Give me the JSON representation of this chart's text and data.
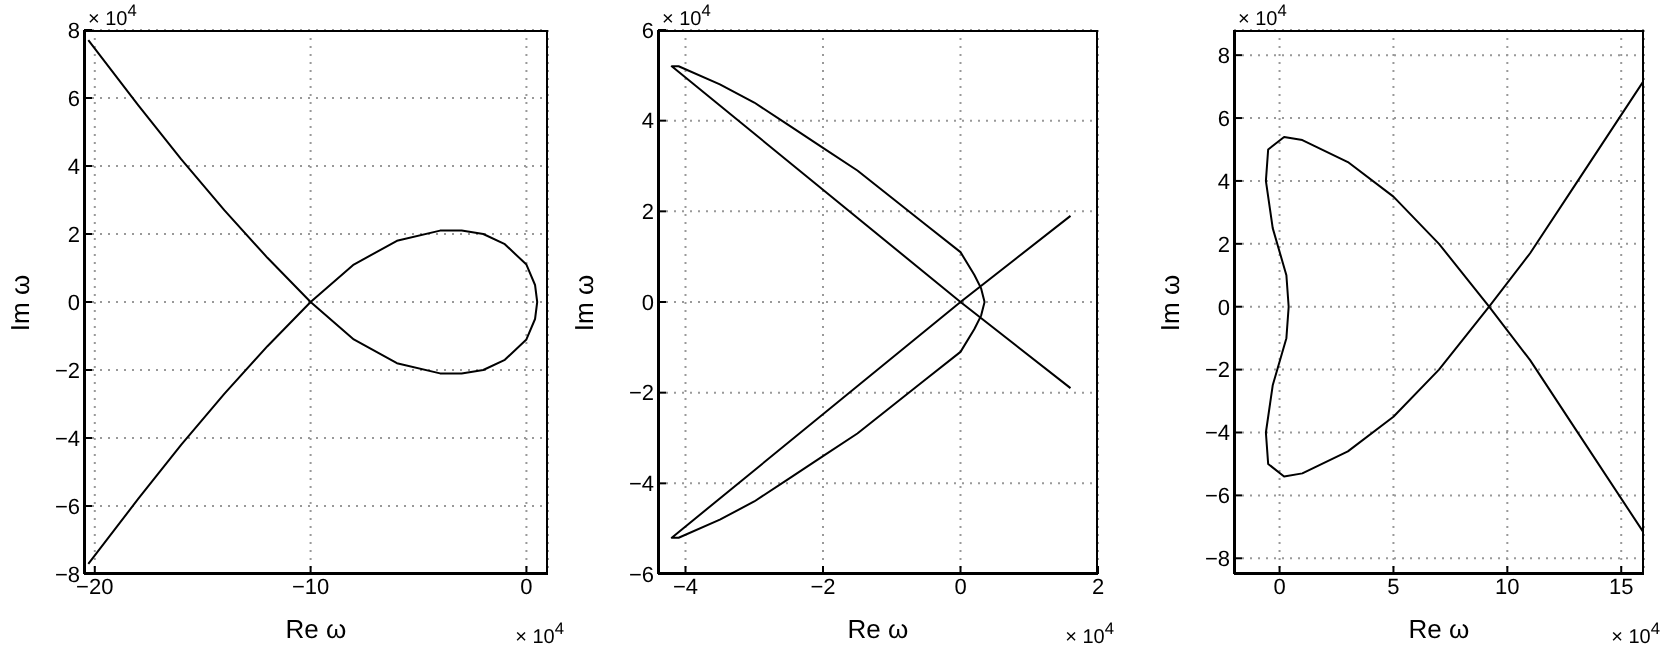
{
  "chart_data": [
    {
      "type": "line",
      "xlabel": "Re ω",
      "ylabel": "Im ω",
      "xlim": [
        -20.5,
        1
      ],
      "xticks": [
        -20,
        -10,
        0
      ],
      "ylim": [
        -8,
        8
      ],
      "yticks": [
        -8,
        -6,
        -4,
        -2,
        0,
        2,
        4,
        6,
        8
      ],
      "grid": true,
      "annotations": [
        "× 10$^{4}$",
        "× 10$^{4}$"
      ],
      "series": [
        {
          "color": "#000000",
          "x": [
            -20.3,
            -18,
            -16,
            -14,
            -12,
            -10,
            -8,
            -6,
            -4,
            -3,
            -2,
            -1,
            0,
            0.4,
            0.5,
            0.4,
            0,
            -1,
            -2,
            -3,
            -4,
            -6,
            -8,
            -10,
            -12,
            -14,
            -16,
            -18,
            -20.3
          ],
          "values": [
            7.7,
            5.8,
            4.2,
            2.7,
            1.3,
            0,
            -1.1,
            -1.8,
            -2.1,
            -2.1,
            -2,
            -1.7,
            -1.1,
            -0.5,
            0,
            0.5,
            1.1,
            1.7,
            2,
            2.1,
            2.1,
            1.8,
            1.1,
            0,
            -1.3,
            -2.7,
            -4.2,
            -5.8,
            -7.7
          ]
        }
      ]
    },
    {
      "type": "line",
      "xlabel": "Re ω",
      "ylabel": "Im ω",
      "xlim": [
        -4.4,
        2
      ],
      "xticks": [
        -4,
        -2,
        0,
        2
      ],
      "ylim": [
        -6,
        6
      ],
      "yticks": [
        -6,
        -4,
        -2,
        0,
        2,
        4,
        6
      ],
      "grid": true,
      "annotations": [
        "× 10$^{4}$",
        "× 10$^{4}$"
      ],
      "series": [
        {
          "color": "#000000",
          "x": [
            1.6,
            0,
            -4.2,
            -4.1,
            -3.5,
            -3,
            -2.5,
            -2,
            -1.5,
            -1,
            -0.5,
            0,
            0.2,
            0.3,
            0.35,
            0.3,
            0.2,
            0,
            -0.5,
            -1,
            -1.5,
            -2,
            -2.5,
            -3,
            -3.5,
            -4.1,
            -4.2,
            0,
            1.6
          ],
          "values": [
            -1.9,
            0,
            5.2,
            5.2,
            4.8,
            4.4,
            3.9,
            3.4,
            2.9,
            2.3,
            1.7,
            1.1,
            0.6,
            0.3,
            0,
            -0.3,
            -0.6,
            -1.1,
            -1.7,
            -2.3,
            -2.9,
            -3.4,
            -3.9,
            -4.4,
            -4.8,
            -5.2,
            -5.2,
            0,
            1.9
          ]
        }
      ]
    },
    {
      "type": "line",
      "xlabel": "Re ω",
      "ylabel": "Im ω",
      "xlim": [
        -2,
        16
      ],
      "xticks": [
        0,
        5,
        10,
        15
      ],
      "ylim": [
        -8.5,
        8.8
      ],
      "yticks": [
        -8,
        -6,
        -4,
        -2,
        0,
        2,
        4,
        6,
        8
      ],
      "grid": true,
      "annotations": [
        "× 10$^{4}$",
        "× 10$^{4}$"
      ],
      "series": [
        {
          "color": "#000000",
          "x": [
            16,
            13,
            11,
            9.2,
            7,
            5,
            3,
            1,
            0.2,
            -0.5,
            -0.6,
            -0.3,
            0.3,
            0.4,
            0.3,
            -0.3,
            -0.6,
            -0.5,
            0.2,
            1,
            3,
            5,
            7,
            9.2,
            11,
            13,
            16
          ],
          "values": [
            -7.2,
            -3.9,
            -1.7,
            0,
            2,
            3.5,
            4.6,
            5.3,
            5.4,
            5,
            4,
            2.5,
            1,
            0,
            -1,
            -2.5,
            -4,
            -5,
            -5.4,
            -5.3,
            -4.6,
            -3.5,
            -2,
            0,
            1.7,
            3.9,
            7.2
          ]
        }
      ]
    }
  ]
}
